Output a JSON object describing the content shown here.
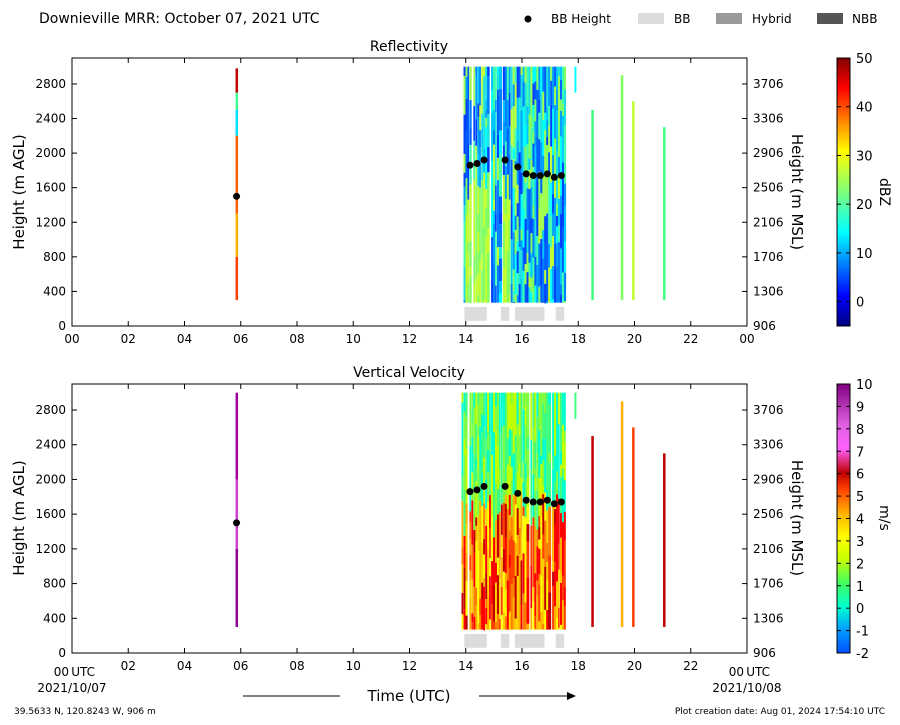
{
  "header": {
    "title": "Downieville MRR:  October 07, 2021 UTC",
    "legend": [
      {
        "label": "BB Height",
        "kind": "marker",
        "color": "#000000"
      },
      {
        "label": "BB",
        "kind": "swatch",
        "color": "#dcdcdc"
      },
      {
        "label": "Hybrid",
        "kind": "swatch",
        "color": "#9a9a9a"
      },
      {
        "label": "NBB",
        "kind": "swatch",
        "color": "#555555"
      }
    ]
  },
  "footer": {
    "location": "39.5633 N, 120.8243 W, 906 m",
    "creation": "Plot creation date: Aug 01, 2024 17:54:10 UTC",
    "xlabel": "Time (UTC)",
    "start_suffix": "UTC",
    "start_date": "2021/10/07",
    "end_suffix": "UTC",
    "end_date": "2021/10/08"
  },
  "chart_data": [
    {
      "type": "heatmap",
      "title": "Reflectivity",
      "xlabel": "",
      "ylabel": "Height (m AGL)",
      "y2label": "Height (m MSL)",
      "colorbar_label": "dBZ",
      "xlim": [
        0,
        24
      ],
      "ylim": [
        0,
        3100
      ],
      "xticks": [
        "00",
        "02",
        "04",
        "06",
        "08",
        "10",
        "12",
        "14",
        "16",
        "18",
        "20",
        "22",
        "00"
      ],
      "yticks": [
        0,
        400,
        800,
        1200,
        1600,
        2000,
        2400,
        2800
      ],
      "y2ticks": [
        906,
        1306,
        1706,
        2106,
        2506,
        2906,
        3306,
        3706
      ],
      "colorbar": {
        "min": -5,
        "max": 50,
        "ticks": [
          0,
          10,
          20,
          30,
          40,
          50
        ]
      },
      "grid": false,
      "bb_height": {
        "x": [
          5.85,
          14.15,
          14.4,
          14.65,
          15.4,
          15.85,
          16.15,
          16.4,
          16.65,
          16.9,
          17.15,
          17.4
        ],
        "y": [
          1500,
          1860,
          1880,
          1920,
          1920,
          1840,
          1760,
          1740,
          1740,
          1760,
          1720,
          1740
        ]
      },
      "bb_flags": [
        {
          "start": 13.95,
          "end": 14.75,
          "class": "BB"
        },
        {
          "start": 15.25,
          "end": 15.55,
          "class": "BB"
        },
        {
          "start": 15.75,
          "end": 16.8,
          "class": "BB"
        },
        {
          "start": 17.2,
          "end": 17.5,
          "class": "BB"
        }
      ]
    },
    {
      "type": "heatmap",
      "title": "Vertical Velocity",
      "xlabel": "",
      "ylabel": "Height (m AGL)",
      "y2label": "Height (m MSL)",
      "colorbar_label": "m/s",
      "xlim": [
        0,
        24
      ],
      "ylim": [
        0,
        3100
      ],
      "xticks": [
        "00",
        "02",
        "04",
        "06",
        "08",
        "10",
        "12",
        "14",
        "16",
        "18",
        "20",
        "22",
        "00"
      ],
      "yticks": [
        0,
        400,
        800,
        1200,
        1600,
        2000,
        2400,
        2800
      ],
      "y2ticks": [
        906,
        1306,
        1706,
        2106,
        2506,
        2906,
        3306,
        3706
      ],
      "colorbar": {
        "min": -2,
        "max": 10,
        "ticks": [
          -2,
          -1,
          0,
          1,
          2,
          3,
          4,
          5,
          6,
          7,
          8,
          9,
          10
        ]
      },
      "grid": false,
      "bb_height": {
        "x": [
          5.85,
          14.15,
          14.4,
          14.65,
          15.4,
          15.85,
          16.15,
          16.4,
          16.65,
          16.9,
          17.15,
          17.4
        ],
        "y": [
          1500,
          1860,
          1880,
          1920,
          1920,
          1840,
          1760,
          1740,
          1740,
          1760,
          1720,
          1740
        ]
      },
      "bb_flags": [
        {
          "start": 13.95,
          "end": 14.75,
          "class": "BB"
        },
        {
          "start": 15.25,
          "end": 15.55,
          "class": "BB"
        },
        {
          "start": 15.75,
          "end": 16.8,
          "class": "BB"
        },
        {
          "start": 17.2,
          "end": 17.5,
          "class": "BB"
        }
      ]
    }
  ]
}
